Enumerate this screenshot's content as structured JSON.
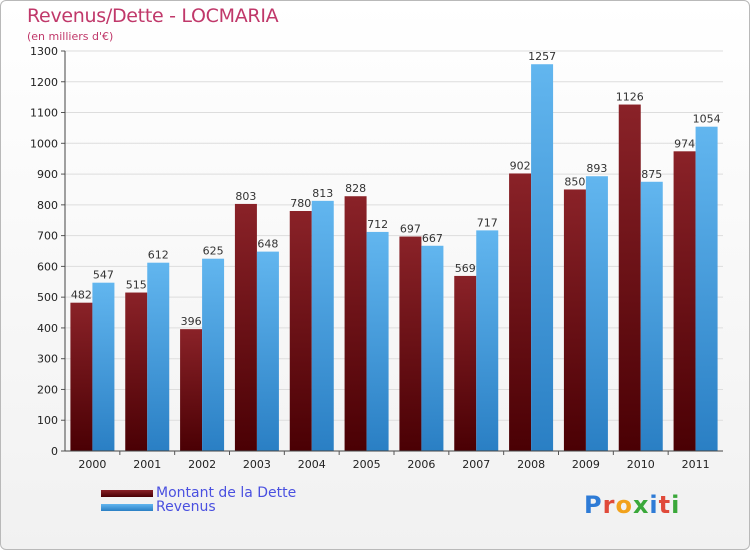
{
  "header": {
    "title": "Revenus/Dette - LOCMARIA",
    "subtitle": "(en milliers d'€)"
  },
  "logo": {
    "text": "Proxiti",
    "letter_colors": [
      "#2e7bd6",
      "#e04a3a",
      "#f2a21c",
      "#3aa83a",
      "#2e7bd6",
      "#e04a3a",
      "#3aa83a"
    ]
  },
  "colors": {
    "dette": "#7a1a1f",
    "dette_dark": "#4a0004",
    "revenus": "#5ab0ec",
    "revenus_dark": "#2a7fc4",
    "axis_text": "#222222",
    "grid": "#dddddd",
    "value_text": "#333333"
  },
  "chart_data": {
    "type": "bar",
    "title": "Revenus/Dette - LOCMARIA",
    "subtitle": "(en milliers d'€)",
    "categories": [
      "2000",
      "2001",
      "2002",
      "2003",
      "2004",
      "2005",
      "2006",
      "2007",
      "2008",
      "2009",
      "2010",
      "2011"
    ],
    "series": [
      {
        "name": "Montant de la Dette",
        "values": [
          482,
          515,
          396,
          803,
          780,
          828,
          697,
          569,
          902,
          850,
          1126,
          974
        ]
      },
      {
        "name": "Revenus",
        "values": [
          547,
          612,
          625,
          648,
          813,
          712,
          667,
          717,
          1257,
          893,
          875,
          1054
        ]
      }
    ],
    "ylim": [
      0,
      1300
    ],
    "yticks": [
      0,
      100,
      200,
      300,
      400,
      500,
      600,
      700,
      800,
      900,
      1000,
      1100,
      1200,
      1300
    ],
    "grid": true,
    "legend_position": "bottom-left"
  }
}
